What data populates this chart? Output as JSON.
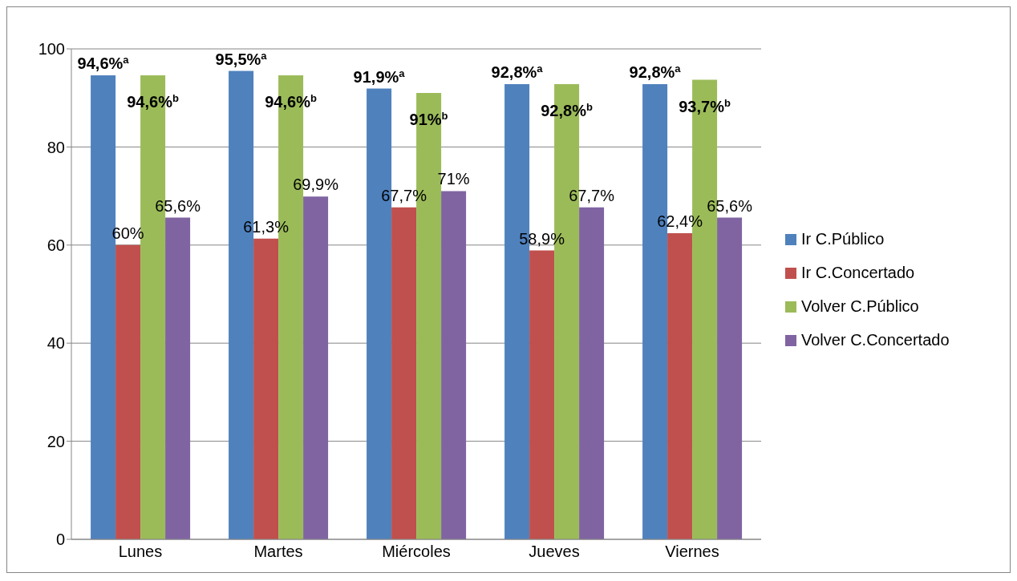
{
  "chart_data": {
    "type": "bar",
    "categories": [
      "Lunes",
      "Martes",
      "Miércoles",
      "Jueves",
      "Viernes"
    ],
    "series": [
      {
        "name": "Ir C.Público",
        "color": "#4f81bd",
        "values": [
          94.6,
          95.5,
          91.9,
          92.8,
          92.8
        ],
        "value_labels": [
          "94,6%$^{a}$",
          "95,5%$^{a}$",
          "91,9%$^{a}$",
          "92,8%$^{a}$",
          "92,8%$^{a}$"
        ]
      },
      {
        "name": "Ir C.Concertado",
        "color": "#c0504d",
        "values": [
          60,
          61.3,
          67.7,
          58.9,
          62.4
        ],
        "value_labels": [
          "60%",
          "61,3%",
          "67,7%",
          "58,9%",
          "62,4%"
        ]
      },
      {
        "name": "Volver C.Público",
        "color": "#9bbb59",
        "values": [
          94.6,
          94.6,
          91,
          92.8,
          93.7
        ],
        "value_labels": [
          "94,6%$^{b}$",
          "94,6%$^{b}$",
          "91%$^{b}$",
          "92,8%$^{b}$",
          "93,7%$^{b}$"
        ]
      },
      {
        "name": "Volver C.Concertado",
        "color": "#8064a2",
        "values": [
          65.6,
          69.9,
          71,
          67.7,
          65.6
        ],
        "value_labels": [
          "65,6%",
          "69,9%",
          "71%",
          "67,7%",
          "65,6%"
        ]
      }
    ],
    "ylim": [
      0,
      100
    ],
    "yticks": [
      0,
      20,
      40,
      60,
      80,
      100
    ],
    "grid": "y",
    "legend": "right"
  }
}
